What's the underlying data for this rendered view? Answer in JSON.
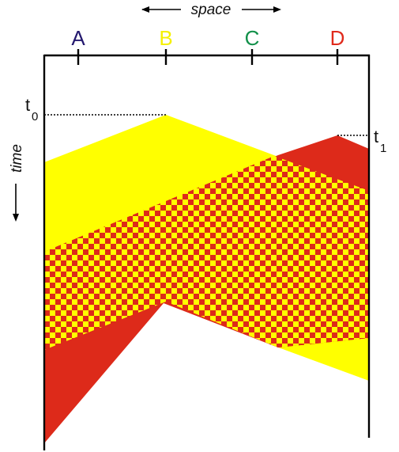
{
  "labels": {
    "space": "space",
    "time": "time",
    "t0_symbol": "t",
    "t0_sub": "0",
    "t1_symbol": "t",
    "t1_sub": "1"
  },
  "stations": [
    {
      "id": "a",
      "label": "A",
      "color": "#23186e"
    },
    {
      "id": "b",
      "label": "B",
      "color": "#f5f000"
    },
    {
      "id": "c",
      "label": "C",
      "color": "#12904a"
    },
    {
      "id": "d",
      "label": "D",
      "color": "#e02a1c"
    }
  ],
  "colors": {
    "yellow": "#ffff00",
    "red": "#dd2a1a",
    "line": "#000000"
  }
}
